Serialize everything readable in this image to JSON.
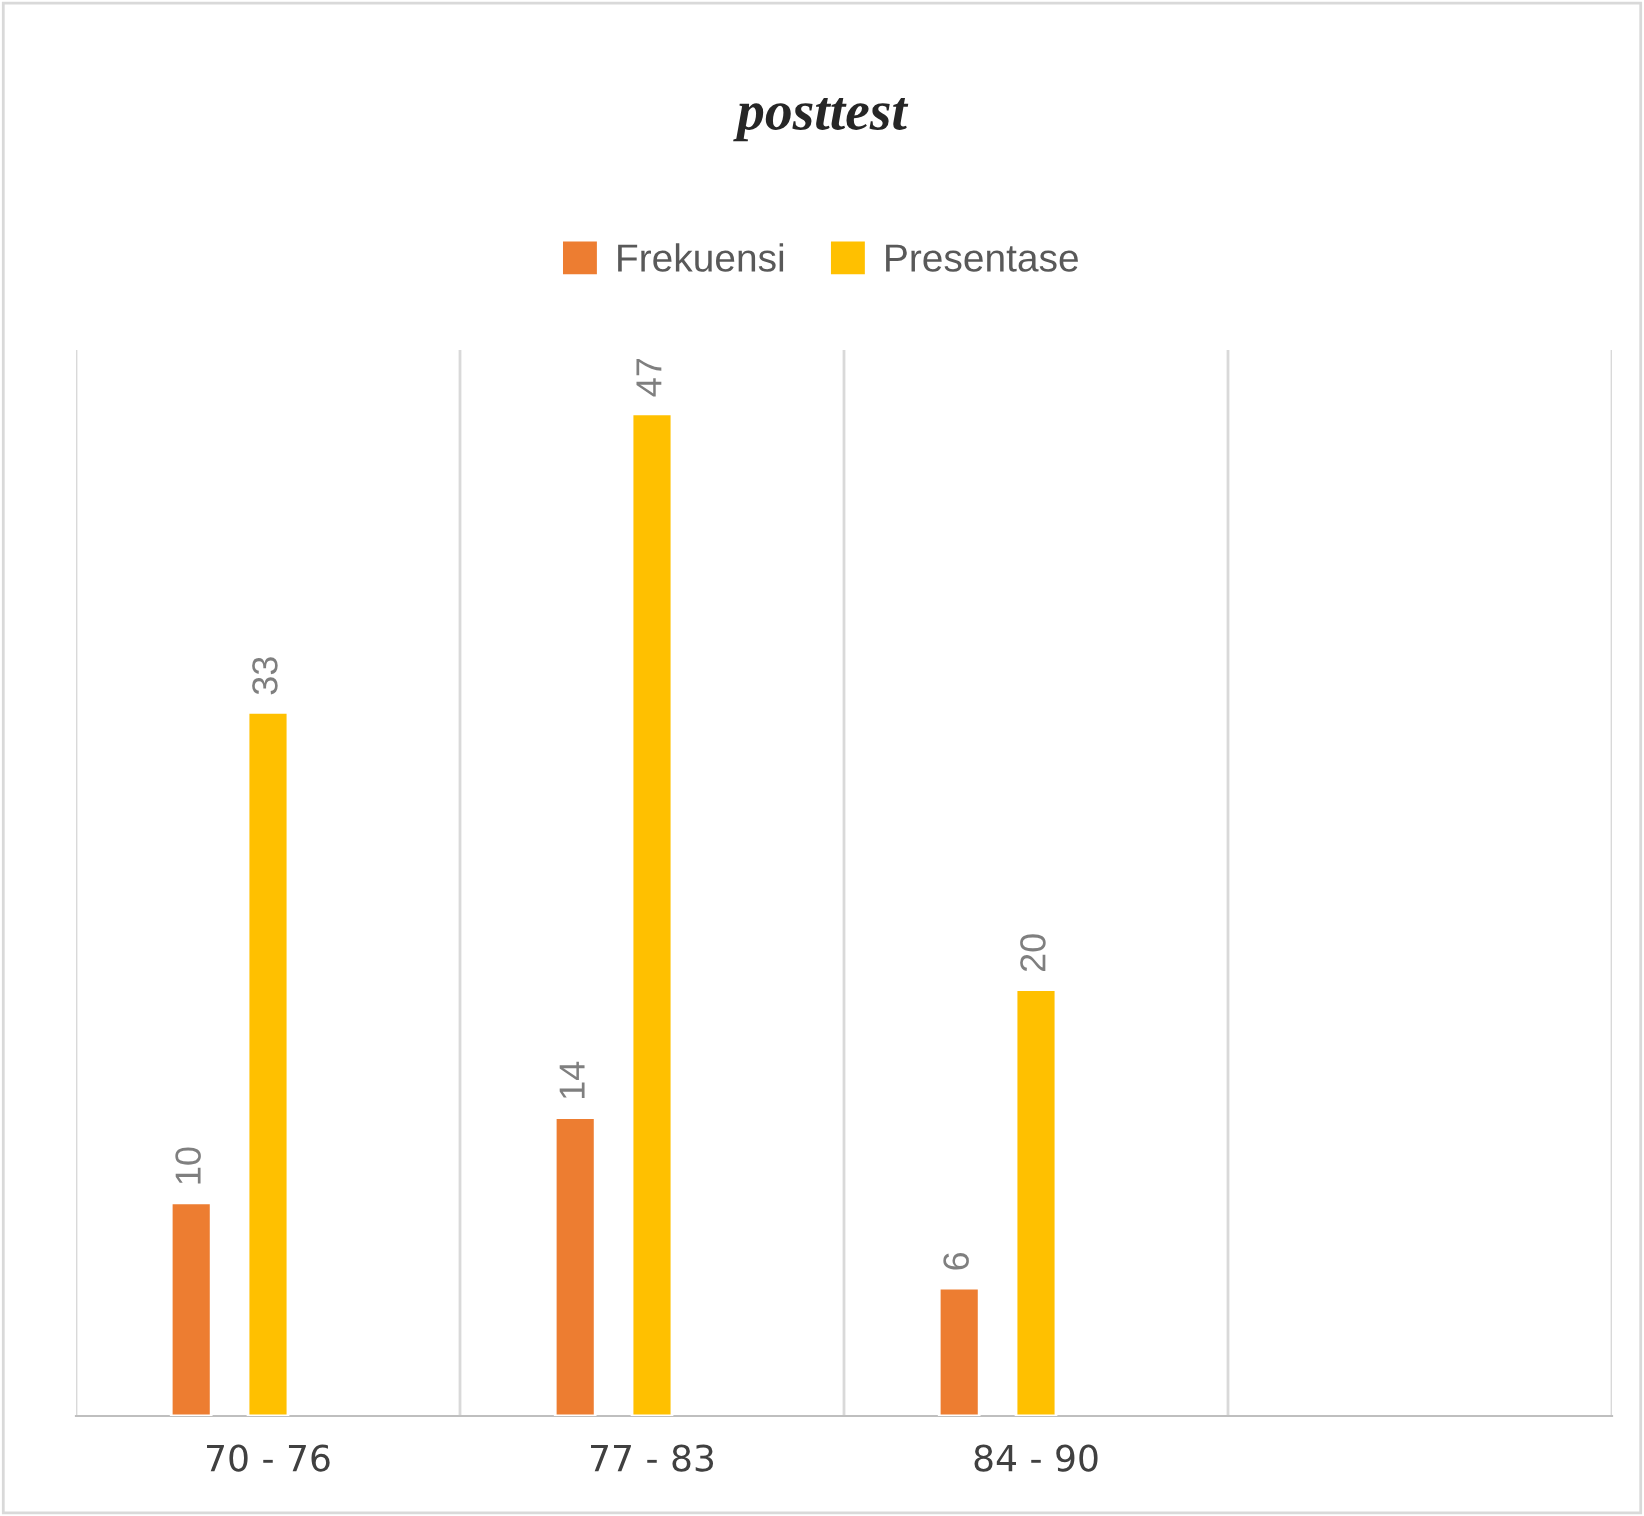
{
  "chart_data": {
    "type": "bar",
    "title": "posttest",
    "categories": [
      "70 - 76",
      "77 - 83",
      "84 - 90",
      null
    ],
    "series": [
      {
        "name": "Frekuensi",
        "color": "#ed7d31",
        "values": [
          10,
          14,
          6,
          null
        ]
      },
      {
        "name": "Presentase",
        "color": "#ffc000",
        "values": [
          33,
          47,
          20,
          null
        ]
      }
    ],
    "ylim": [
      0,
      50
    ],
    "tick_labels": "x",
    "data_labels": true,
    "grid": "x",
    "legend": "top"
  }
}
